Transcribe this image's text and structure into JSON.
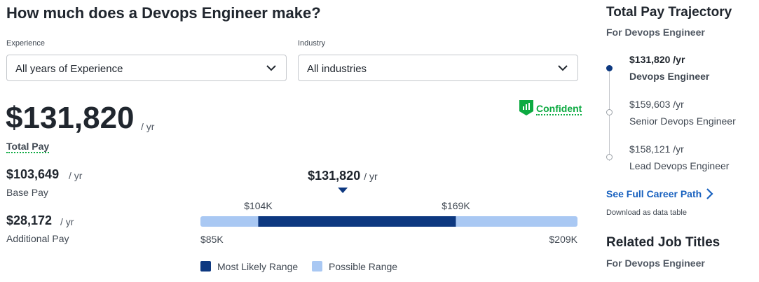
{
  "header": {
    "title": "How much does a Devops Engineer make?"
  },
  "filters": [
    {
      "label": "Experience",
      "value": "All years of Experience"
    },
    {
      "label": "Industry",
      "value": "All industries"
    }
  ],
  "total_pay": {
    "amount": "$131,820",
    "unit": "/ yr",
    "label": "Total Pay",
    "confidence": "Confident"
  },
  "breakdown": [
    {
      "amount": "$103,649",
      "unit": "/ yr",
      "label": "Base Pay"
    },
    {
      "amount": "$28,172",
      "unit": "/ yr",
      "label": "Additional Pay"
    }
  ],
  "range": {
    "median": {
      "value": 131820,
      "label": "$131,820"
    },
    "median_unit": "/ yr",
    "possible": [
      {
        "value": 85000,
        "label": "$85K"
      },
      {
        "value": 209000,
        "label": "$209K"
      }
    ],
    "likely": [
      {
        "value": 104000,
        "label": "$104K"
      },
      {
        "value": 169000,
        "label": "$169K"
      }
    ],
    "legend": [
      "Most Likely Range",
      "Possible Range"
    ]
  },
  "sidebar": {
    "title": "Total Pay Trajectory",
    "subtitle": "For Devops Engineer",
    "steps": [
      {
        "pay": "$131,820 /yr",
        "role": "Devops Engineer"
      },
      {
        "pay": "$159,603 /yr",
        "role": "Senior Devops Engineer"
      },
      {
        "pay": "$158,121 /yr",
        "role": "Lead Devops Engineer"
      }
    ],
    "link": "See Full Career Path",
    "download": "Download as data table",
    "related_title": "Related Job Titles",
    "related_subtitle": "For Devops Engineer"
  }
}
